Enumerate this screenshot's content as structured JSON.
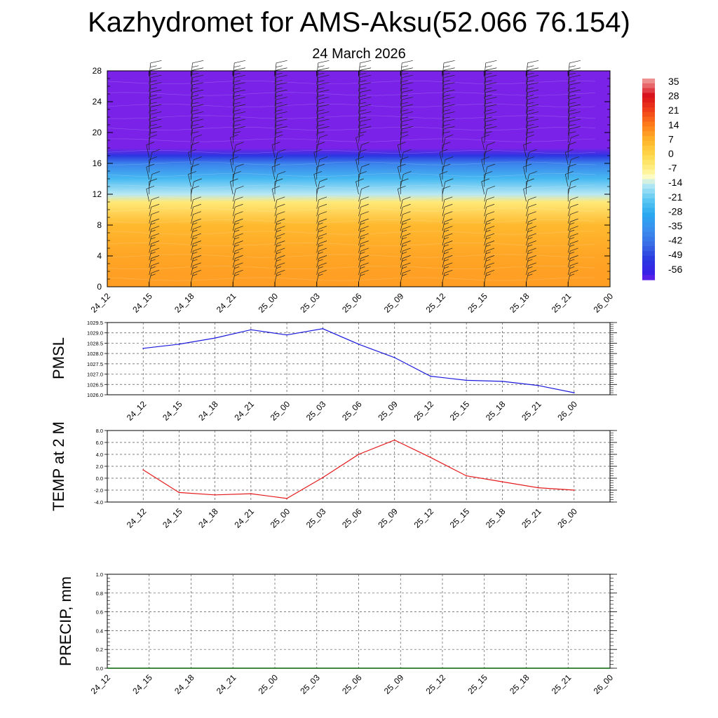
{
  "title": "Kazhydromet for AMS-Aksu(52.066 76.154)",
  "subtitle": "24 March 2026",
  "time_labels": [
    "24_12",
    "24_15",
    "24_18",
    "24_21",
    "25_00",
    "25_03",
    "25_06",
    "25_09",
    "25_12",
    "25_15",
    "25_18",
    "25_21",
    "26_00"
  ],
  "colors": {
    "pmsl_line": "#1a1adc",
    "temp_line": "#e41a1c",
    "precip_line": "#006400",
    "grid": "#555555"
  },
  "chart_data": [
    {
      "type": "heatmap",
      "name": "vertical-section",
      "x": [
        "24_12",
        "24_15",
        "24_18",
        "24_21",
        "25_00",
        "25_03",
        "25_06",
        "25_09",
        "25_12",
        "25_15",
        "25_18",
        "25_21",
        "26_00"
      ],
      "ylim": [
        0,
        28
      ],
      "yticks": [
        0,
        4,
        8,
        12,
        16,
        20,
        24,
        28
      ],
      "colorbar_labels": [
        "35",
        "28",
        "21",
        "14",
        "7",
        "0",
        "-7",
        "-14",
        "-21",
        "-28",
        "-35",
        "-42",
        "-49",
        "-56"
      ],
      "temperature_profile": [
        {
          "y": 0,
          "value": 10
        },
        {
          "y": 4,
          "value": 9
        },
        {
          "y": 8,
          "value": 6
        },
        {
          "y": 11,
          "value": -5
        },
        {
          "y": 12,
          "value": -14
        },
        {
          "y": 14,
          "value": -24
        },
        {
          "y": 16,
          "value": -38
        },
        {
          "y": 17,
          "value": -50
        },
        {
          "y": 18,
          "value": -60
        },
        {
          "y": 28,
          "value": -60
        }
      ],
      "wind_barbs": true
    },
    {
      "type": "line",
      "ylabel": "PMSL",
      "x": [
        "24_12",
        "24_15",
        "24_18",
        "24_21",
        "25_00",
        "25_03",
        "25_06",
        "25_09",
        "25_12",
        "25_15",
        "25_18",
        "25_21",
        "26_00"
      ],
      "values": [
        1028.25,
        1028.45,
        1028.75,
        1029.15,
        1028.9,
        1029.2,
        1028.45,
        1027.8,
        1026.9,
        1026.7,
        1026.65,
        1026.45,
        1026.1
      ],
      "ylim": [
        1026.0,
        1029.5
      ],
      "yticks": [
        "1026.0",
        "1026.5",
        "1027.0",
        "1027.5",
        "1028.0",
        "1028.5",
        "1029.0",
        "1029.5"
      ],
      "grid": true
    },
    {
      "type": "line",
      "ylabel": "TEMP at 2 M",
      "x": [
        "24_12",
        "24_15",
        "24_18",
        "24_21",
        "25_00",
        "25_03",
        "25_06",
        "25_09",
        "25_12",
        "25_15",
        "25_18",
        "25_21",
        "26_00"
      ],
      "values": [
        1.4,
        -2.4,
        -2.8,
        -2.6,
        -3.4,
        0.1,
        4.0,
        6.4,
        3.5,
        0.4,
        -0.6,
        -1.6,
        -2.0
      ],
      "ylim": [
        -4.0,
        8.0
      ],
      "yticks": [
        "-4.0",
        "-2.0",
        "0.0",
        "2.0",
        "4.0",
        "6.0",
        "8.0"
      ],
      "grid": true
    },
    {
      "type": "line",
      "ylabel": "PRECIP, mm",
      "x": [
        "24_12",
        "24_15",
        "24_18",
        "24_21",
        "25_00",
        "25_03",
        "25_06",
        "25_09",
        "25_12",
        "25_15",
        "25_18",
        "25_21",
        "26_00"
      ],
      "values": [
        0.0,
        0.0,
        0.0,
        0.0,
        0.0,
        0.0,
        0.0,
        0.0,
        0.0,
        0.0,
        0.0,
        0.0,
        0.0
      ],
      "ylim": [
        0.0,
        1.0
      ],
      "yticks": [
        "0.0",
        "0.2",
        "0.4",
        "0.6",
        "0.8",
        "1.0"
      ],
      "grid": true
    }
  ]
}
